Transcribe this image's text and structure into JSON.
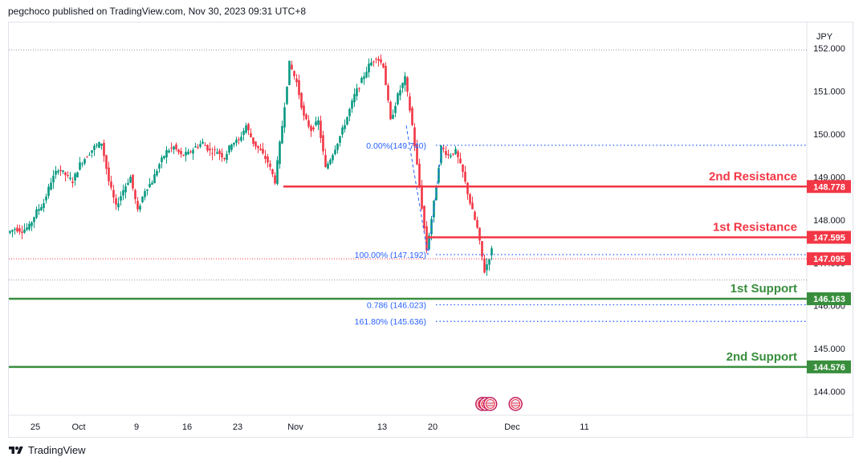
{
  "header": {
    "attribution": "pegchoco published on TradingView.com, Nov 30, 2023 09:31 UTC+8"
  },
  "footer": {
    "brand": "TradingView"
  },
  "chart_data": {
    "type": "candlestick",
    "symbol_currency": "JPY",
    "ylim": [
      143.45,
      152.6
    ],
    "y_ticks": [
      144.0,
      145.0,
      146.0,
      147.0,
      148.0,
      149.0,
      150.0,
      151.0,
      152.0
    ],
    "x_ticks": [
      {
        "label": "25",
        "day": 3
      },
      {
        "label": "Oct",
        "day": 9
      },
      {
        "label": "9",
        "day": 17
      },
      {
        "label": "16",
        "day": 24
      },
      {
        "label": "23",
        "day": 31
      },
      {
        "label": "Nov",
        "day": 39
      },
      {
        "label": "13",
        "day": 51
      },
      {
        "label": "20",
        "day": 58
      },
      {
        "label": "Dec",
        "day": 69
      },
      {
        "label": "11",
        "day": 79
      }
    ],
    "path_points": [
      [
        0,
        147.7
      ],
      [
        1,
        147.8
      ],
      [
        2,
        147.75
      ],
      [
        3,
        147.85
      ],
      [
        4,
        148.2
      ],
      [
        5,
        148.4
      ],
      [
        6,
        148.9
      ],
      [
        7,
        149.2
      ],
      [
        8,
        149.05
      ],
      [
        9,
        148.9
      ],
      [
        10,
        149.3
      ],
      [
        11,
        149.5
      ],
      [
        12,
        149.7
      ],
      [
        13,
        149.8
      ],
      [
        14,
        148.9
      ],
      [
        15,
        148.3
      ],
      [
        16,
        148.7
      ],
      [
        17,
        149.0
      ],
      [
        18,
        148.2
      ],
      [
        19,
        148.7
      ],
      [
        20,
        148.9
      ],
      [
        21,
        149.3
      ],
      [
        22,
        149.6
      ],
      [
        23,
        149.7
      ],
      [
        24,
        149.5
      ],
      [
        25,
        149.55
      ],
      [
        26,
        149.7
      ],
      [
        27,
        149.8
      ],
      [
        28,
        149.6
      ],
      [
        29,
        149.6
      ],
      [
        30,
        149.45
      ],
      [
        31,
        149.8
      ],
      [
        32,
        149.85
      ],
      [
        33,
        150.2
      ],
      [
        34,
        149.8
      ],
      [
        35,
        149.6
      ],
      [
        36,
        149.35
      ],
      [
        37,
        148.9
      ],
      [
        38,
        150.2
      ],
      [
        39,
        151.65
      ],
      [
        40,
        151.2
      ],
      [
        41,
        150.4
      ],
      [
        42,
        150.1
      ],
      [
        43,
        150.3
      ],
      [
        44,
        149.2
      ],
      [
        45,
        149.55
      ],
      [
        46,
        149.95
      ],
      [
        47,
        150.4
      ],
      [
        48,
        150.9
      ],
      [
        49,
        151.25
      ],
      [
        50,
        151.6
      ],
      [
        51,
        151.8
      ],
      [
        52,
        151.6
      ],
      [
        53,
        150.3
      ],
      [
        54,
        150.9
      ],
      [
        55,
        151.3
      ],
      [
        56,
        150.2
      ],
      [
        57,
        148.8
      ],
      [
        58,
        147.3
      ],
      [
        59,
        148.4
      ],
      [
        60,
        149.7
      ],
      [
        61,
        149.5
      ],
      [
        62,
        149.6
      ],
      [
        63,
        149.1
      ],
      [
        64,
        148.4
      ],
      [
        65,
        147.8
      ],
      [
        66,
        146.8
      ],
      [
        67,
        147.3
      ]
    ],
    "price_low": 146.8,
    "price_high": 151.9,
    "levels": [
      {
        "name": "2nd Resistance",
        "value": 148.778,
        "label": "148.778",
        "color": "#f23645",
        "start_day": 38
      },
      {
        "name": "1st Resistance",
        "value": 147.595,
        "label": "147.595",
        "color": "#f23645",
        "start_day": 58
      },
      {
        "name": "1st Support",
        "value": 146.163,
        "label": "146.163",
        "color": "#388e3c",
        "start_day": 0
      },
      {
        "name": "2nd Support",
        "value": 144.576,
        "label": "144.576",
        "color": "#388e3c",
        "start_day": 0
      }
    ],
    "current_price": {
      "value": 147.095,
      "label": "147.095",
      "color": "#f23645"
    },
    "fib_levels": [
      {
        "label": "0.00%(149.740)",
        "value": 149.74,
        "start_day": 58
      },
      {
        "label": "100.00% (147.192)",
        "value": 147.192,
        "start_day": 58
      },
      {
        "label": "0.786 (146.023)",
        "value": 146.023,
        "start_day": 58
      },
      {
        "label": "161.80% (145.636)",
        "value": 145.636,
        "start_day": 58
      }
    ],
    "fib_color": "#2962ff",
    "zigzag": [
      [
        55,
        150.2
      ],
      [
        58,
        147.19
      ],
      [
        60,
        149.74
      ]
    ],
    "event_icons": [
      {
        "day": 65.2
      },
      {
        "day": 65.7
      },
      {
        "day": 66.3
      },
      {
        "day": 69.8
      }
    ],
    "top_dotted": 152.0,
    "bottom_dotted": 146.6
  }
}
